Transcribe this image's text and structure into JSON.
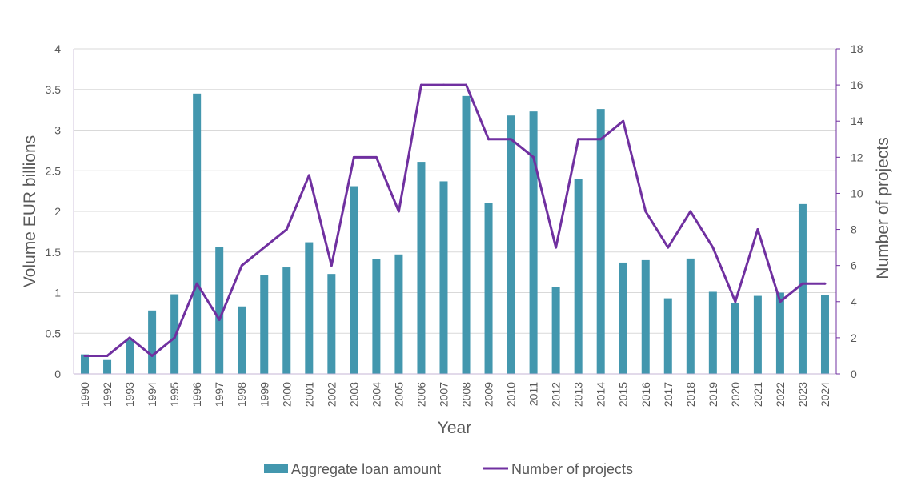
{
  "chart_data": {
    "type": "bar+line",
    "title": "",
    "xlabel": "Year",
    "ylabel": "Volume EUR billions",
    "y2label": "Number of projects",
    "ylim": [
      0,
      4
    ],
    "y2lim": [
      0,
      18
    ],
    "yticks": [
      "0",
      "0.5",
      "1",
      "1.5",
      "2",
      "2.5",
      "3",
      "3.5",
      "4"
    ],
    "y2ticks": [
      "0",
      "2",
      "4",
      "6",
      "8",
      "10",
      "12",
      "14",
      "16",
      "18"
    ],
    "grid": true,
    "legend_position": "bottom",
    "categories": [
      "1990",
      "1992",
      "1993",
      "1994",
      "1995",
      "1996",
      "1997",
      "1998",
      "1999",
      "2000",
      "2001",
      "2002",
      "2003",
      "2004",
      "2005",
      "2006",
      "2007",
      "2008",
      "2009",
      "2010",
      "2011",
      "2012",
      "2013",
      "2014",
      "2015",
      "2016",
      "2017",
      "2018",
      "2019",
      "2020",
      "2021",
      "2022",
      "2023",
      "2024"
    ],
    "series": [
      {
        "name": "Aggregate loan amount",
        "type": "bar",
        "axis": "left",
        "color": "#4397AE",
        "values": [
          0.24,
          0.17,
          0.42,
          0.78,
          0.98,
          3.45,
          1.56,
          0.83,
          1.22,
          1.31,
          1.62,
          1.23,
          2.31,
          1.41,
          1.47,
          2.61,
          2.37,
          3.42,
          2.1,
          3.18,
          3.23,
          1.07,
          2.4,
          3.26,
          1.37,
          1.4,
          0.93,
          1.42,
          1.01,
          0.87,
          0.96,
          1.0,
          2.09,
          0.97
        ]
      },
      {
        "name": "Number of projects",
        "type": "line",
        "axis": "right",
        "color": "#7030A0",
        "values": [
          1,
          1,
          2,
          1,
          2,
          5,
          3,
          6,
          7,
          8,
          11,
          6,
          12,
          12,
          9,
          16,
          16,
          16,
          13,
          13,
          12,
          7,
          13,
          13,
          14,
          9,
          7,
          9,
          7,
          4,
          8,
          4,
          5,
          5
        ]
      }
    ]
  }
}
